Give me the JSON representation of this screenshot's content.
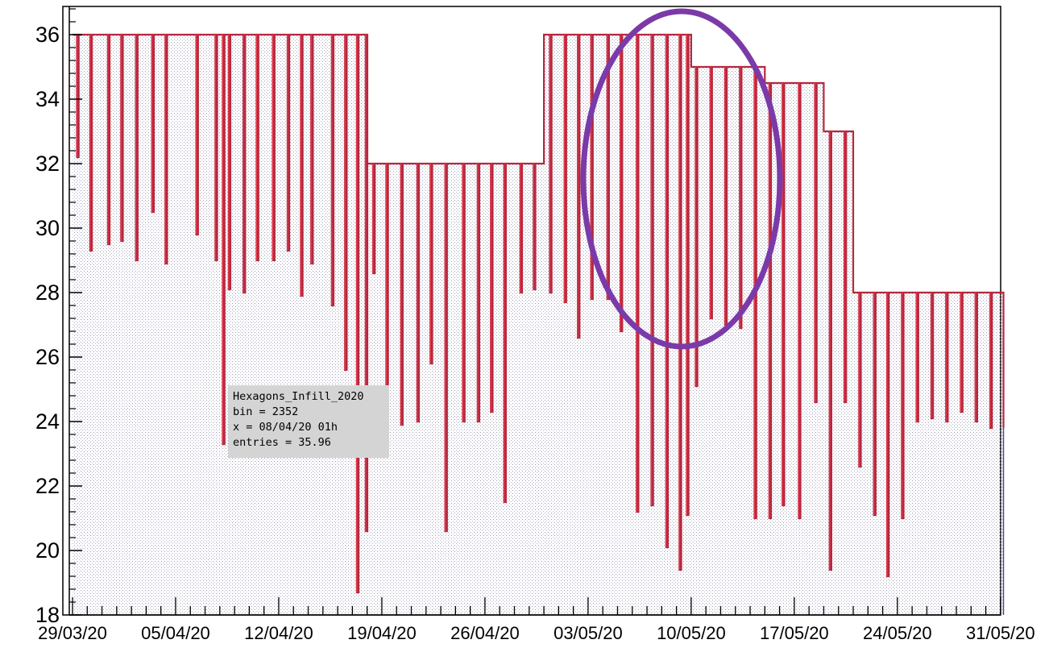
{
  "tooltip": {
    "line1": "Hexagons_Infill_2020",
    "line2": "bin = 2352",
    "line3": "x = 08/04/20 01h",
    "line4": "entries = 35.96"
  },
  "colors": {
    "line": "#b5283f",
    "spike": "#e8394a",
    "highlight_ellipse": "#7b3aa8",
    "fill_dots": "#9a9ab8"
  },
  "chart_data": {
    "type": "line",
    "title": "",
    "xlabel": "",
    "ylabel": "",
    "ylim": [
      18,
      37
    ],
    "yticks": [
      18,
      20,
      22,
      24,
      26,
      28,
      30,
      32,
      34,
      36
    ],
    "x_range_days": [
      0,
      64
    ],
    "xtick_labels": [
      "29/03/20",
      "05/04/20",
      "12/04/20",
      "19/04/20",
      "26/04/20",
      "03/05/20",
      "10/05/20",
      "17/05/20",
      "24/05/20",
      "31/05/20"
    ],
    "xtick_days": [
      0,
      7,
      14,
      21,
      28,
      35,
      42,
      49,
      56,
      63
    ],
    "series": [
      {
        "levels": [
          {
            "from_day": 0,
            "to_day": 20,
            "value": 36
          },
          {
            "from_day": 20,
            "to_day": 32,
            "value": 32
          },
          {
            "from_day": 32,
            "to_day": 42,
            "value": 36
          },
          {
            "from_day": 42,
            "to_day": 47,
            "value": 35
          },
          {
            "from_day": 47,
            "to_day": 51,
            "value": 34.5
          },
          {
            "from_day": 51,
            "to_day": 53,
            "value": 33
          },
          {
            "from_day": 53,
            "to_day": 63,
            "value": 28
          }
        ],
        "dips": [
          {
            "day": 0.3,
            "value": 32.2
          },
          {
            "day": 1.2,
            "value": 29.3
          },
          {
            "day": 1.2,
            "value": 31.1
          },
          {
            "day": 2.4,
            "value": 29.5
          },
          {
            "day": 3.3,
            "value": 29.6
          },
          {
            "day": 4.3,
            "value": 29.0
          },
          {
            "day": 5.4,
            "value": 30.5
          },
          {
            "day": 6.3,
            "value": 28.9
          },
          {
            "day": 8.4,
            "value": 29.8
          },
          {
            "day": 9.7,
            "value": 29.0
          },
          {
            "day": 10.2,
            "value": 23.3
          },
          {
            "day": 10.6,
            "value": 28.1
          },
          {
            "day": 11.6,
            "value": 28.0
          },
          {
            "day": 12.5,
            "value": 29.0
          },
          {
            "day": 13.6,
            "value": 29.0
          },
          {
            "day": 14.6,
            "value": 29.3
          },
          {
            "day": 15.5,
            "value": 27.9
          },
          {
            "day": 16.2,
            "value": 28.9
          },
          {
            "day": 17.6,
            "value": 27.6
          },
          {
            "day": 18.5,
            "value": 25.6
          },
          {
            "day": 19.3,
            "value": 18.7
          },
          {
            "day": 19.9,
            "value": 20.6
          },
          {
            "day": 20.4,
            "value": 28.6
          },
          {
            "day": 21.3,
            "value": 24.1
          },
          {
            "day": 22.3,
            "value": 23.9
          },
          {
            "day": 23.4,
            "value": 24.0
          },
          {
            "day": 24.3,
            "value": 25.8
          },
          {
            "day": 25.3,
            "value": 20.6
          },
          {
            "day": 26.5,
            "value": 24.0
          },
          {
            "day": 27.5,
            "value": 24.0
          },
          {
            "day": 28.4,
            "value": 24.3
          },
          {
            "day": 29.3,
            "value": 21.5
          },
          {
            "day": 30.4,
            "value": 28.0
          },
          {
            "day": 31.3,
            "value": 28.1
          },
          {
            "day": 32.4,
            "value": 28.0
          },
          {
            "day": 33.4,
            "value": 27.7
          },
          {
            "day": 34.3,
            "value": 26.6
          },
          {
            "day": 35.2,
            "value": 27.8
          },
          {
            "day": 36.3,
            "value": 27.8
          },
          {
            "day": 37.2,
            "value": 26.8
          },
          {
            "day": 38.3,
            "value": 21.2
          },
          {
            "day": 39.3,
            "value": 21.4
          },
          {
            "day": 40.3,
            "value": 20.1
          },
          {
            "day": 41.2,
            "value": 19.4
          },
          {
            "day": 41.7,
            "value": 21.1
          },
          {
            "day": 42.3,
            "value": 25.1
          },
          {
            "day": 43.3,
            "value": 27.2
          },
          {
            "day": 44.3,
            "value": 27.0
          },
          {
            "day": 45.3,
            "value": 26.9
          },
          {
            "day": 46.3,
            "value": 21.0
          },
          {
            "day": 47.3,
            "value": 21.0
          },
          {
            "day": 48.2,
            "value": 21.4
          },
          {
            "day": 49.3,
            "value": 21.0
          },
          {
            "day": 50.4,
            "value": 24.6
          },
          {
            "day": 51.4,
            "value": 19.4
          },
          {
            "day": 52.4,
            "value": 24.6
          },
          {
            "day": 53.4,
            "value": 22.6
          },
          {
            "day": 54.4,
            "value": 21.1
          },
          {
            "day": 55.3,
            "value": 19.2
          },
          {
            "day": 56.3,
            "value": 21.0
          },
          {
            "day": 57.3,
            "value": 24.0
          },
          {
            "day": 58.3,
            "value": 24.1
          },
          {
            "day": 59.3,
            "value": 24.0
          },
          {
            "day": 60.3,
            "value": 24.3
          },
          {
            "day": 61.3,
            "value": 24.0
          },
          {
            "day": 62.3,
            "value": 23.8
          }
        ]
      }
    ]
  }
}
